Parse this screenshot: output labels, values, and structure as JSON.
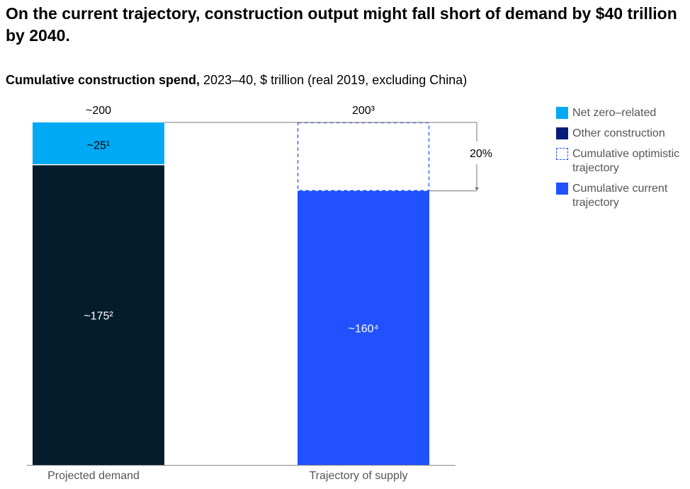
{
  "title": "On the current trajectory, construction output might fall short of demand by $40 trillion by 2040.",
  "subtitle_bold": "Cumulative construction spend,",
  "subtitle_rest": " 2023–40, $ trillion (real 2019, excluding China)",
  "colors": {
    "net_zero": "#00a9f4",
    "other": "#051c2c",
    "other_legend": "#051c7a",
    "current": "#2251ff",
    "optimistic": "#2251ff"
  },
  "chart_data": {
    "type": "bar",
    "title": "Cumulative construction spend",
    "categories": [
      "Projected demand",
      "Trajectory of supply"
    ],
    "ylim": [
      0,
      200
    ],
    "series": [
      {
        "name": "Other construction",
        "values": [
          175,
          null
        ],
        "labels": [
          "~175²",
          ""
        ]
      },
      {
        "name": "Net zero–related",
        "values": [
          25,
          null
        ],
        "labels": [
          "~25¹",
          ""
        ]
      },
      {
        "name": "Cumulative current trajectory",
        "values": [
          null,
          160
        ],
        "labels": [
          "",
          "~160⁴"
        ]
      },
      {
        "name": "Cumulative optimistic trajectory",
        "values": [
          null,
          40
        ],
        "labels": [
          "",
          ""
        ]
      }
    ],
    "totals": [
      "~200",
      "200³"
    ],
    "gap_annotation": "20%",
    "legend": [
      "Net zero–related",
      "Other construction",
      "Cumulative optimistic trajectory",
      "Cumulative current trajectory"
    ],
    "legend_placement": "right"
  }
}
